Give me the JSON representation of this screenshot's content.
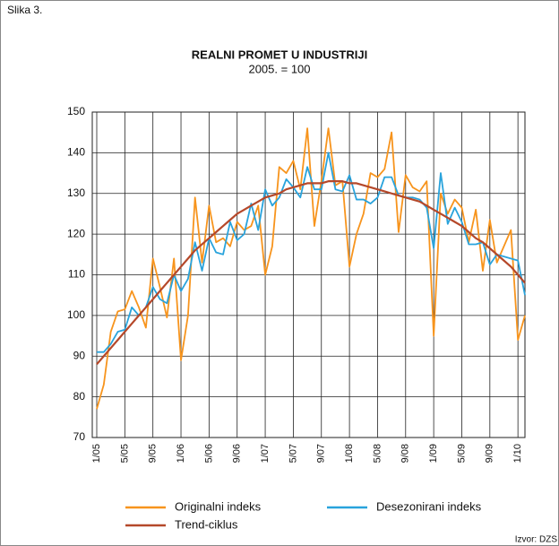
{
  "figure_label": "Slika 3.",
  "source": "Izvor: DZS",
  "chart_data": {
    "type": "line",
    "title": "REALNI PROMET U INDUSTRIJI",
    "subtitle": "2005. = 100",
    "categories": [
      "1/05",
      null,
      null,
      null,
      "5/05",
      null,
      null,
      null,
      "9/05",
      null,
      null,
      null,
      "1/06",
      null,
      null,
      null,
      "5/06",
      null,
      null,
      null,
      "9/06",
      null,
      null,
      null,
      "1/07",
      null,
      null,
      null,
      "5/07",
      null,
      null,
      null,
      "9/07",
      null,
      null,
      null,
      "1/08",
      null,
      null,
      null,
      "5/08",
      null,
      null,
      null,
      "9/08",
      null,
      null,
      null,
      "1/09",
      null,
      null,
      null,
      "5/09",
      null,
      null,
      null,
      "9/09",
      null,
      null,
      null,
      "1/10",
      null
    ],
    "series": [
      {
        "name": "Originalni indeks",
        "color": "#f7941d",
        "values": [
          77,
          83,
          96,
          101,
          101.5,
          106,
          102,
          97,
          114,
          107,
          99.5,
          114,
          89,
          100,
          129,
          113,
          127,
          118,
          119,
          117,
          123,
          121,
          122,
          127,
          110,
          117,
          136.5,
          135,
          138,
          131,
          146,
          122,
          133,
          146,
          132,
          133,
          112,
          120,
          125,
          135,
          134,
          136,
          145,
          120.5,
          134.5,
          131.5,
          130.5,
          133,
          95,
          130,
          125,
          128.5,
          126.5,
          118,
          126,
          111,
          123.5,
          113,
          117,
          121,
          94,
          100
        ]
      },
      {
        "name": "Desezonirani indeks",
        "color": "#29a3dc",
        "values": [
          91,
          91,
          93,
          96,
          96.5,
          102,
          100,
          102,
          107,
          104,
          103,
          110,
          106,
          109,
          118,
          111,
          119,
          115.5,
          115,
          123,
          118.5,
          120,
          127.5,
          121,
          131,
          127,
          129,
          133.5,
          131.5,
          129,
          136.5,
          131,
          131,
          140,
          131,
          130.5,
          134.5,
          128.5,
          128.5,
          127.5,
          129,
          134,
          134,
          129.5,
          129,
          129,
          128.5,
          126.5,
          116.5,
          135,
          122.5,
          126.5,
          123,
          117.5,
          117.5,
          118,
          112.5,
          115,
          114.5,
          114,
          113.5,
          105
        ]
      },
      {
        "name": "Trend-ciklus",
        "color": "#b5482a",
        "values": [
          88,
          90,
          92,
          94,
          96,
          98,
          100,
          102,
          104,
          106,
          108,
          110,
          112,
          114,
          116,
          117.5,
          119,
          120.5,
          122,
          123.5,
          125,
          126,
          127,
          128,
          129,
          129.5,
          130,
          131,
          131.5,
          132,
          132.5,
          132.5,
          132.5,
          133,
          133,
          133,
          132.5,
          132.5,
          132,
          131.5,
          131,
          130.5,
          130,
          129.5,
          129,
          128.5,
          128,
          127,
          126,
          125,
          124,
          123,
          122,
          120.5,
          119,
          118,
          116.5,
          115,
          113.5,
          112,
          110,
          108
        ]
      }
    ],
    "ylim": [
      70,
      150
    ],
    "yticks": [
      70,
      80,
      90,
      100,
      110,
      120,
      130,
      140,
      150
    ],
    "grid": true
  }
}
